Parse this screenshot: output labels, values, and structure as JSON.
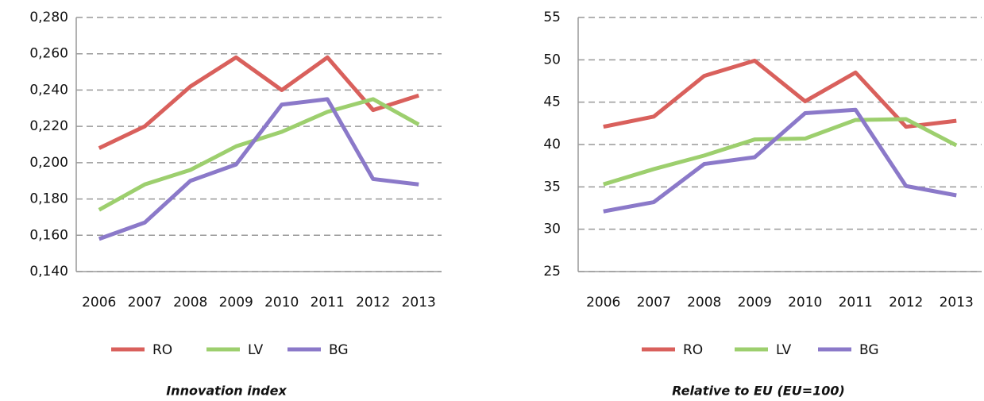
{
  "chart_data": [
    {
      "type": "line",
      "title": "Innovation index",
      "categories": [
        "2006",
        "2007",
        "2008",
        "2009",
        "2010",
        "2011",
        "2012",
        "2013"
      ],
      "series": [
        {
          "name": "RO",
          "color": "#d9605c",
          "values": [
            0.208,
            0.22,
            0.242,
            0.258,
            0.24,
            0.258,
            0.229,
            0.237
          ]
        },
        {
          "name": "LV",
          "color": "#9dcf6e",
          "values": [
            0.174,
            0.188,
            0.196,
            0.209,
            0.217,
            0.228,
            0.235,
            0.221
          ]
        },
        {
          "name": "BG",
          "color": "#8b79c9",
          "values": [
            0.158,
            0.167,
            0.19,
            0.199,
            0.232,
            0.235,
            0.191,
            0.188
          ]
        }
      ],
      "ylim": [
        0.14,
        0.28
      ],
      "yticks": [
        {
          "value": 0.14,
          "label": "0,140"
        },
        {
          "value": 0.16,
          "label": "0,160"
        },
        {
          "value": 0.18,
          "label": "0,180"
        },
        {
          "value": 0.2,
          "label": "0,200"
        },
        {
          "value": 0.22,
          "label": "0,220"
        },
        {
          "value": 0.24,
          "label": "0,240"
        },
        {
          "value": 0.26,
          "label": "0,260"
        },
        {
          "value": 0.28,
          "label": "0,280"
        }
      ],
      "grid": true
    },
    {
      "type": "line",
      "title": "Relative to EU (EU=100)",
      "categories": [
        "2006",
        "2007",
        "2008",
        "2009",
        "2010",
        "2011",
        "2012",
        "2013"
      ],
      "series": [
        {
          "name": "RO",
          "color": "#d9605c",
          "values": [
            42.1,
            43.3,
            48.1,
            49.9,
            45.1,
            48.5,
            42.1,
            42.8
          ]
        },
        {
          "name": "LV",
          "color": "#9dcf6e",
          "values": [
            35.3,
            37.1,
            38.7,
            40.6,
            40.7,
            42.9,
            43.0,
            39.9
          ]
        },
        {
          "name": "BG",
          "color": "#8b79c9",
          "values": [
            32.1,
            33.2,
            37.7,
            38.5,
            43.7,
            44.1,
            35.1,
            34.0
          ]
        }
      ],
      "ylim": [
        25,
        55
      ],
      "yticks": [
        25,
        30,
        35,
        40,
        45,
        50,
        55
      ],
      "grid": true
    }
  ]
}
